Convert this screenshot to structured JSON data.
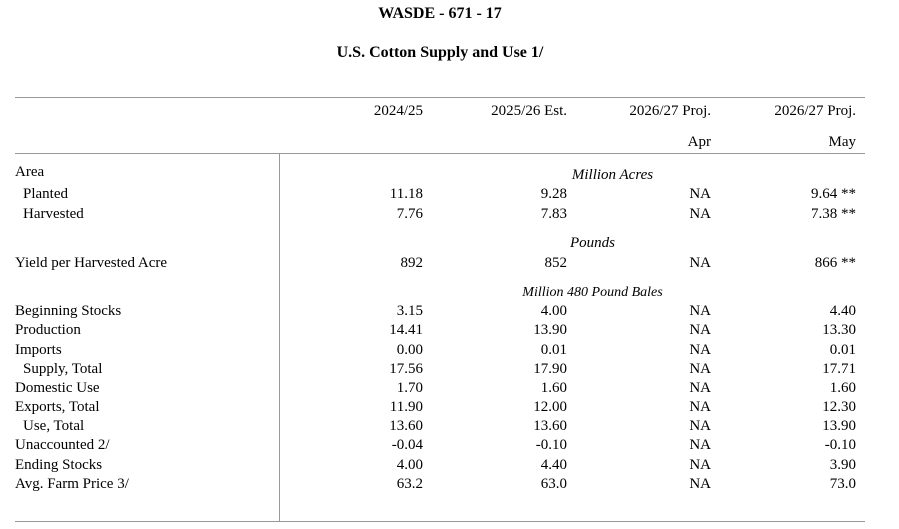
{
  "header": {
    "report_code": "WASDE - 671 - 17",
    "table_title": "U.S. Cotton Supply and Use  1/"
  },
  "columns": [
    {
      "label": "2024/25",
      "sub": ""
    },
    {
      "label": "2025/26 Est.",
      "sub": ""
    },
    {
      "label": "2026/27 Proj.",
      "sub": "Apr"
    },
    {
      "label": "2026/27 Proj.",
      "sub": "May"
    }
  ],
  "sections": {
    "area_label": "Area",
    "area_units": "Million Acres",
    "yield_units": "Pounds",
    "bales_units": "Million 480 Pound Bales"
  },
  "rows": [
    {
      "label": "Planted",
      "values": [
        "11.18",
        "9.28",
        "NA",
        "9.64 **"
      ]
    },
    {
      "label": "Harvested",
      "values": [
        "7.76",
        "7.83",
        "NA",
        "7.38 **"
      ]
    },
    {
      "label": "Yield per Harvested Acre",
      "values": [
        "892",
        "852",
        "NA",
        "866 **"
      ]
    },
    {
      "label": "Beginning Stocks",
      "values": [
        "3.15",
        "4.00",
        "NA",
        "4.40"
      ]
    },
    {
      "label": "Production",
      "values": [
        "14.41",
        "13.90",
        "NA",
        "13.30"
      ]
    },
    {
      "label": "Imports",
      "values": [
        "0.00",
        "0.01",
        "NA",
        "0.01"
      ]
    },
    {
      "label": "Supply, Total",
      "values": [
        "17.56",
        "17.90",
        "NA",
        "17.71"
      ]
    },
    {
      "label": "Domestic Use",
      "values": [
        "1.70",
        "1.60",
        "NA",
        "1.60"
      ]
    },
    {
      "label": "Exports, Total",
      "values": [
        "11.90",
        "12.00",
        "NA",
        "12.30"
      ]
    },
    {
      "label": "Use, Total",
      "values": [
        "13.60",
        "13.60",
        "NA",
        "13.90"
      ]
    },
    {
      "label": "Unaccounted 2/",
      "values": [
        "-0.04",
        "-0.10",
        "NA",
        "-0.10"
      ]
    },
    {
      "label": "Ending Stocks",
      "values": [
        "4.00",
        "4.40",
        "NA",
        "3.90"
      ]
    },
    {
      "label": "Avg. Farm Price 3/",
      "values": [
        "63.2",
        "63.0",
        "NA",
        "73.0"
      ]
    }
  ]
}
